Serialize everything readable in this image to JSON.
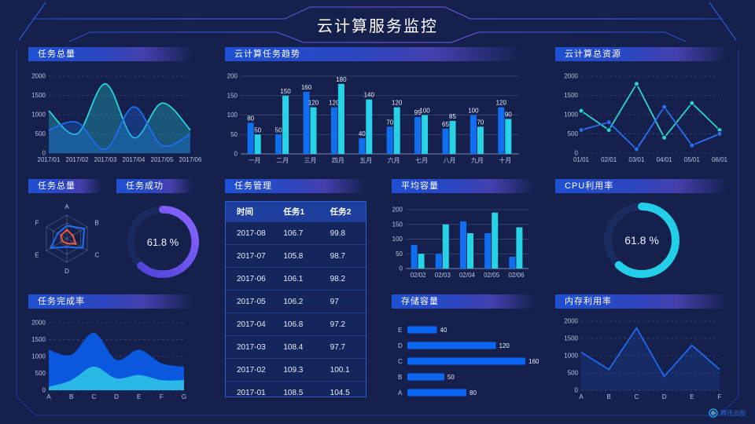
{
  "page": {
    "title": "云计算服务监控",
    "watermark": "腾讯云图",
    "background": "#15204c",
    "accent": "#2e5bd0"
  },
  "titles": {
    "taskTotal": "任务总量",
    "taskTrend": "云计算任务趋势",
    "cloudRes": "云计算总资源",
    "radar": "任务总量",
    "success": "任务成功",
    "mgmt": "任务管理",
    "avgCap": "平均容量",
    "cpu": "CPU利用率",
    "completion": "任务完成率",
    "storage": "存储容量",
    "memory": "内存利用率"
  },
  "gauges": {
    "success": {
      "label": "61.8 %",
      "value": 61.8,
      "color": "#6f58f0"
    },
    "cpu": {
      "label": "61.8 %",
      "value": 61.8,
      "color": "#23cfe8"
    }
  },
  "chart_data": [
    {
      "id": "task-total-area",
      "type": "line",
      "title": "任务总量",
      "x": [
        "2017/01",
        "2017/02",
        "2017/03",
        "2017/04",
        "2017/05",
        "2017/06"
      ],
      "ylim": [
        0,
        2000
      ],
      "yticks": [
        0,
        500,
        1000,
        1500,
        2000
      ],
      "grid": "dashed",
      "series": [
        {
          "name": "series-cyan",
          "color": "#26d4de",
          "smooth": true,
          "area": true,
          "areaOpacity": 0.3,
          "values": [
            1100,
            500,
            1800,
            400,
            1300,
            600
          ]
        },
        {
          "name": "series-blue",
          "color": "#1e6cf0",
          "smooth": true,
          "area": true,
          "areaOpacity": 0.3,
          "values": [
            600,
            800,
            100,
            1200,
            200,
            500
          ]
        }
      ]
    },
    {
      "id": "task-trend-bar",
      "type": "bar",
      "title": "云计算任务趋势",
      "categories": [
        "一月",
        "二月",
        "三月",
        "四月",
        "五月",
        "六月",
        "七月",
        "八月",
        "九月",
        "十月"
      ],
      "ylim": [
        0,
        200
      ],
      "yticks": [
        0,
        50,
        100,
        150,
        200
      ],
      "labels": true,
      "series": [
        {
          "name": "任务1",
          "color": "#0f6ff0",
          "values": [
            80,
            50,
            160,
            120,
            40,
            70,
            95,
            65,
            100,
            120
          ]
        },
        {
          "name": "任务2",
          "color": "#25d2e6",
          "values": [
            50,
            150,
            120,
            180,
            140,
            120,
            100,
            85,
            70,
            90
          ]
        }
      ]
    },
    {
      "id": "cloud-res-line",
      "type": "line",
      "title": "云计算总资源",
      "x": [
        "01/01",
        "02/01",
        "03/01",
        "04/01",
        "05/01",
        "06/01"
      ],
      "ylim": [
        0,
        2000
      ],
      "yticks": [
        0,
        500,
        1000,
        1500,
        2000
      ],
      "grid": "dashed",
      "series": [
        {
          "name": "series-teal",
          "color": "#2bd5c8",
          "markers": true,
          "values": [
            1100,
            600,
            1800,
            400,
            1300,
            600
          ]
        },
        {
          "name": "series-blue",
          "color": "#2a6ff0",
          "markers": true,
          "values": [
            600,
            800,
            100,
            1200,
            200,
            500
          ]
        }
      ]
    },
    {
      "id": "task-radar",
      "type": "radar",
      "title": "任务总量",
      "indicators": [
        "A",
        "B",
        "C",
        "D",
        "E",
        "F"
      ],
      "max": 100,
      "levels": 3,
      "series": [
        {
          "name": "radar-blue",
          "color": "#1f6df0",
          "values": [
            55,
            85,
            78,
            35,
            80,
            45
          ]
        },
        {
          "name": "radar-orange",
          "color": "#f05a32",
          "values": [
            38,
            28,
            45,
            20,
            22,
            28
          ]
        }
      ]
    },
    {
      "id": "success-gauge",
      "type": "donut",
      "title": "任务成功",
      "value": 61.8,
      "color": "#6f58f0",
      "gradient": [
        "#4b3fd6",
        "#8a66ff"
      ],
      "track": "#1b2a5c"
    },
    {
      "id": "task-table",
      "type": "table",
      "title": "任务管理",
      "headers": [
        "时间",
        "任务1",
        "任务2"
      ],
      "rows": [
        [
          "2017-08",
          "106.7",
          "99.8"
        ],
        [
          "2017-07",
          "105.8",
          "98.7"
        ],
        [
          "2017-06",
          "106.1",
          "98.2"
        ],
        [
          "2017-05",
          "106.2",
          "97"
        ],
        [
          "2017-04",
          "106.8",
          "97.2"
        ],
        [
          "2017-03",
          "108.4",
          "97.7"
        ],
        [
          "2017-02",
          "109.3",
          "100.1"
        ],
        [
          "2017-01",
          "108.5",
          "104.5"
        ]
      ]
    },
    {
      "id": "avg-cap-bar",
      "type": "bar",
      "title": "平均容量",
      "categories": [
        "02/02",
        "02/03",
        "02/04",
        "02/05",
        "02/06"
      ],
      "ylim": [
        0,
        200
      ],
      "yticks": [
        0,
        50,
        100,
        150,
        200
      ],
      "labels": false,
      "series": [
        {
          "name": "bar-blue",
          "color": "#0f6ff0",
          "values": [
            80,
            50,
            160,
            120,
            40
          ]
        },
        {
          "name": "bar-cyan",
          "color": "#25d2e6",
          "values": [
            50,
            150,
            120,
            190,
            140
          ]
        }
      ]
    },
    {
      "id": "cpu-gauge",
      "type": "donut",
      "title": "CPU利用率",
      "value": 61.8,
      "color": "#23cfe8",
      "track": "#1a2c5e"
    },
    {
      "id": "completion-area",
      "type": "line",
      "title": "任务完成率",
      "x": [
        "A",
        "B",
        "C",
        "D",
        "E",
        "F",
        "G"
      ],
      "ylim": [
        0,
        2000
      ],
      "yticks": [
        0,
        500,
        1000,
        1500,
        2000
      ],
      "grid": "dashed",
      "series": [
        {
          "name": "area-blue",
          "color": "#0a58de",
          "smooth": true,
          "area": true,
          "areaOpacity": 1,
          "line": false,
          "values": [
            1200,
            1050,
            1700,
            900,
            1200,
            800,
            700
          ]
        },
        {
          "name": "area-cyan",
          "color": "#29b8e4",
          "smooth": true,
          "area": true,
          "areaOpacity": 1,
          "line": false,
          "values": [
            100,
            300,
            700,
            350,
            450,
            300,
            300
          ]
        }
      ]
    },
    {
      "id": "storage-hbar",
      "type": "hbar",
      "title": "存储容量",
      "categories": [
        "E",
        "D",
        "C",
        "B",
        "A"
      ],
      "values": [
        40,
        120,
        160,
        50,
        80
      ],
      "xmax": 160,
      "color": "#0a65f2"
    },
    {
      "id": "memory-line",
      "type": "line",
      "title": "内存利用率",
      "x": [
        "A",
        "B",
        "C",
        "D",
        "E",
        "F"
      ],
      "ylim": [
        0,
        2000
      ],
      "yticks": [
        0,
        500,
        1000,
        1500,
        2000
      ],
      "grid": "dashed",
      "series": [
        {
          "name": "mem-blue",
          "color": "#1e6af0",
          "smooth": false,
          "area": true,
          "areaOpacity": 0.16,
          "values": [
            1100,
            600,
            1800,
            400,
            1300,
            600
          ]
        }
      ]
    }
  ]
}
